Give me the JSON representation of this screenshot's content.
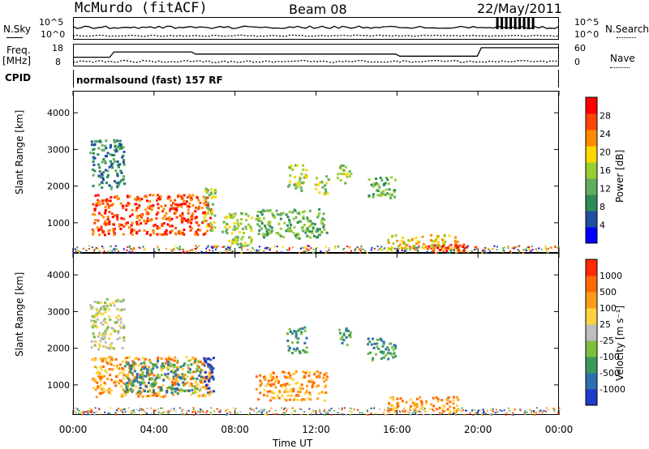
{
  "header": {
    "station": "McMurdo (fitACF)",
    "beam": "Beam 08",
    "date": "22/May/2011"
  },
  "top_panels": {
    "nsky_label": "N.Sky",
    "nsky_ticks": [
      "10^5",
      "10^0"
    ],
    "nsearch_label": "N.Search",
    "nsearch_ticks": [
      "10^5",
      "10^0"
    ],
    "freq_label_1": "Freq.",
    "freq_label_2": "[MHz]",
    "freq_ticks": [
      "18",
      "8"
    ],
    "nave_label": "Nave",
    "nave_ticks": [
      "60",
      "0"
    ],
    "cpid_label": "CPID",
    "cpid_text": "normalsound (fast) 157 RF"
  },
  "colors": {
    "power": [
      "#0000ff",
      "#1f4fa0",
      "#2e8b57",
      "#5fae5f",
      "#9acd32",
      "#ffd700",
      "#ff8c00",
      "#ff4500",
      "#ff0000"
    ],
    "velocity": [
      "#1e3cc8",
      "#2e6fb0",
      "#3a9a5a",
      "#7fbf3f",
      "#bebebe",
      "#ffd23f",
      "#ff9c1a",
      "#ff6a00",
      "#ff2a00"
    ]
  },
  "chart_data": [
    {
      "type": "heatmap",
      "name": "power",
      "ylabel": "Slant Range [km]",
      "xlabel": "Time UT",
      "x_ticks": [
        "00:00",
        "04:00",
        "08:00",
        "12:00",
        "16:00",
        "20:00",
        "00:00"
      ],
      "y_ticks": [
        "1000",
        "2000",
        "3000",
        "4000"
      ],
      "ylim": [
        180,
        4600
      ],
      "xlim_hours": [
        0,
        24
      ],
      "colorbar_label": "Power [dB]",
      "colorbar_ticks": [
        "28",
        "24",
        "20",
        "16",
        "12",
        "8",
        "4"
      ],
      "regions": [
        {
          "t0": 0.9,
          "t1": 6.8,
          "r0": 700,
          "r1": 1800,
          "level": 7
        },
        {
          "t0": 0.8,
          "t1": 2.5,
          "r0": 1950,
          "r1": 3300,
          "level": 2
        },
        {
          "t0": 6.4,
          "t1": 7.0,
          "r0": 800,
          "r1": 2000,
          "level": 4
        },
        {
          "t0": 7.3,
          "t1": 8.8,
          "r0": 400,
          "r1": 1300,
          "level": 4
        },
        {
          "t0": 9.0,
          "t1": 12.5,
          "r0": 600,
          "r1": 1400,
          "level": 3
        },
        {
          "t0": 10.5,
          "t1": 11.5,
          "r0": 1900,
          "r1": 2600,
          "level": 4
        },
        {
          "t0": 11.9,
          "t1": 12.6,
          "r0": 1800,
          "r1": 2300,
          "level": 4
        },
        {
          "t0": 13.0,
          "t1": 13.7,
          "r0": 2100,
          "r1": 2600,
          "level": 4
        },
        {
          "t0": 14.5,
          "t1": 15.9,
          "r0": 1700,
          "r1": 2300,
          "level": 3
        },
        {
          "t0": 15.5,
          "t1": 19.0,
          "r0": 300,
          "r1": 700,
          "level": 5
        },
        {
          "t0": 17.5,
          "t1": 19.4,
          "r0": 250,
          "r1": 450,
          "level": 8
        }
      ]
    },
    {
      "type": "heatmap",
      "name": "velocity",
      "ylabel": "Slant Range [km]",
      "xlabel": "Time UT",
      "x_ticks": [
        "00:00",
        "04:00",
        "08:00",
        "12:00",
        "16:00",
        "20:00",
        "00:00"
      ],
      "y_ticks": [
        "1000",
        "2000",
        "3000",
        "4000"
      ],
      "ylim": [
        180,
        4600
      ],
      "xlim_hours": [
        0,
        24
      ],
      "colorbar_label": "Velocity [m s⁻¹]",
      "colorbar_ticks": [
        "1000",
        "500",
        "100",
        "25",
        "-25",
        "-100",
        "-500",
        "-1000"
      ],
      "regions": [
        {
          "t0": 0.9,
          "t1": 6.8,
          "r0": 700,
          "r1": 1800,
          "level": 6
        },
        {
          "t0": 2.5,
          "t1": 6.3,
          "r0": 800,
          "r1": 1700,
          "level": 2
        },
        {
          "t0": 0.8,
          "t1": 2.5,
          "r0": 2000,
          "r1": 3400,
          "level": 4
        },
        {
          "t0": 6.4,
          "t1": 7.0,
          "r0": 800,
          "r1": 1800,
          "level": 0
        },
        {
          "t0": 9.0,
          "t1": 12.5,
          "r0": 600,
          "r1": 1400,
          "level": 6
        },
        {
          "t0": 10.5,
          "t1": 11.5,
          "r0": 1900,
          "r1": 2600,
          "level": 2
        },
        {
          "t0": 13.0,
          "t1": 13.7,
          "r0": 2100,
          "r1": 2600,
          "level": 2
        },
        {
          "t0": 14.5,
          "t1": 15.9,
          "r0": 1700,
          "r1": 2300,
          "level": 2
        },
        {
          "t0": 15.5,
          "t1": 19.0,
          "r0": 300,
          "r1": 700,
          "level": 6
        }
      ]
    }
  ]
}
